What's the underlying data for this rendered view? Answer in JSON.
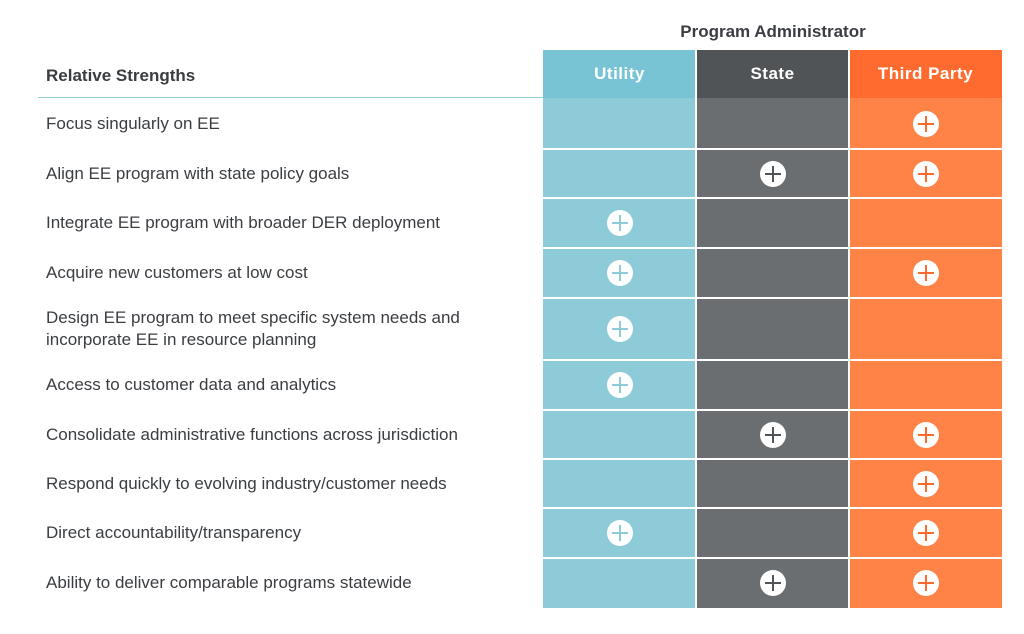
{
  "chart_data": {
    "type": "table",
    "title": "Program Administrator",
    "row_header": "Relative Strengths",
    "columns": [
      {
        "label": "Utility",
        "header_color": "#79c4d4",
        "body_color": "#8ecbd9",
        "icon_color": "#8ecbd9"
      },
      {
        "label": "State",
        "header_color": "#505457",
        "body_color": "#6b6e70",
        "icon_color": "#505457"
      },
      {
        "label": "Third Party",
        "header_color": "#ff6b2e",
        "body_color": "#ff8347",
        "icon_color": "#ff6b2e"
      }
    ],
    "rows": [
      {
        "label": "Focus singularly on EE",
        "marks": [
          false,
          false,
          true
        ]
      },
      {
        "label": "Align EE program with state policy goals",
        "marks": [
          false,
          true,
          true
        ]
      },
      {
        "label": "Integrate EE program with broader DER deployment",
        "marks": [
          true,
          false,
          false
        ]
      },
      {
        "label": "Acquire new customers at low cost",
        "marks": [
          true,
          false,
          true
        ]
      },
      {
        "label": "Design EE program to meet specific system needs and incorporate EE in resource planning",
        "marks": [
          true,
          false,
          false
        ]
      },
      {
        "label": "Access to customer data and analytics",
        "marks": [
          true,
          false,
          false
        ]
      },
      {
        "label": "Consolidate administrative functions across jurisdiction",
        "marks": [
          false,
          true,
          true
        ]
      },
      {
        "label": "Respond quickly to evolving industry/customer needs",
        "marks": [
          false,
          false,
          true
        ]
      },
      {
        "label": "Direct accountability/transparency",
        "marks": [
          true,
          false,
          true
        ]
      },
      {
        "label": "Ability to deliver comparable programs statewide",
        "marks": [
          false,
          true,
          true
        ]
      }
    ],
    "mark_icon": "plus-circle-icon"
  }
}
